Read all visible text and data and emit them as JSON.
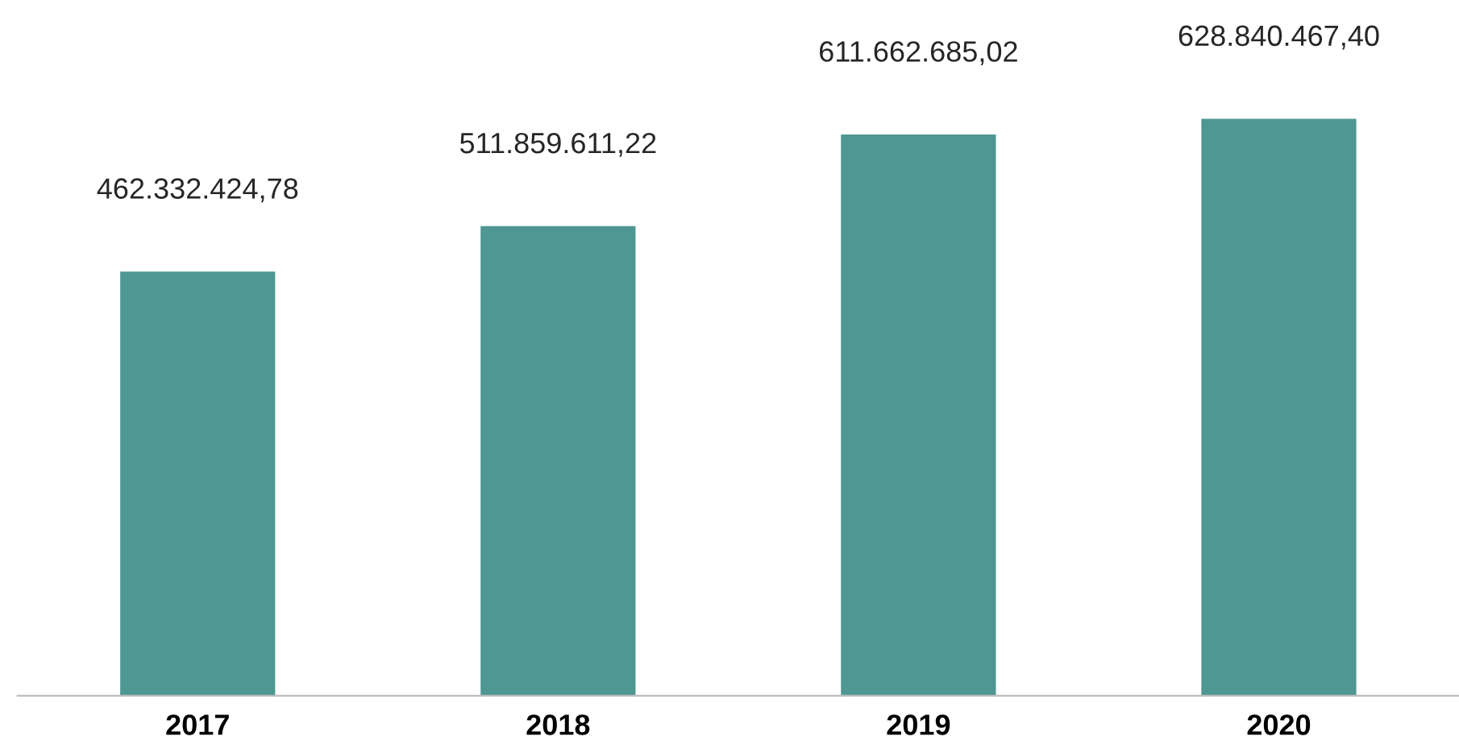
{
  "chart_data": {
    "type": "bar",
    "categories": [
      "2017",
      "2018",
      "2019",
      "2020"
    ],
    "values": [
      462332424.78,
      511859611.22,
      611662685.02,
      628840467.4
    ],
    "value_labels": [
      "462.332.424,78",
      "511.859.611,22",
      "611.662.685,02",
      "628.840.467,40"
    ],
    "color": "#4e9792",
    "grid": false,
    "legend": false
  }
}
